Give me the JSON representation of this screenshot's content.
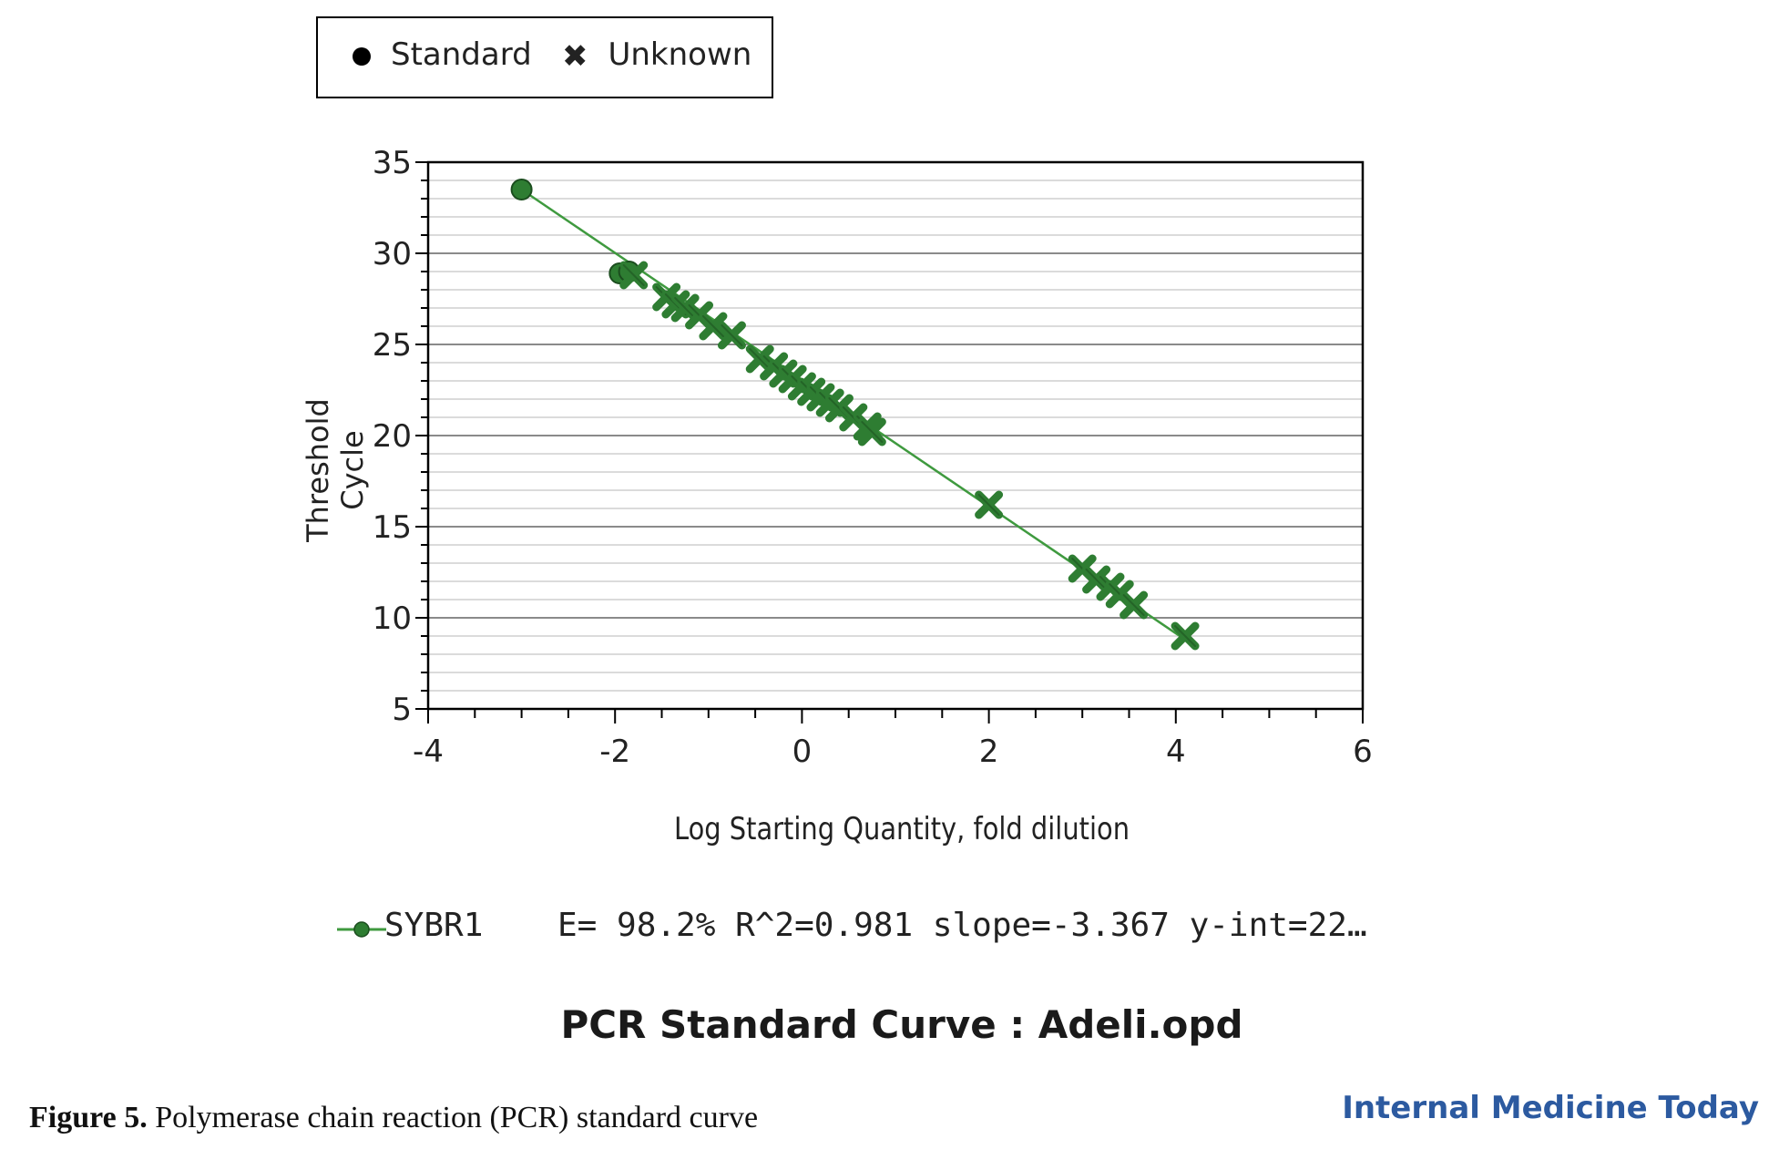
{
  "legend": {
    "standard_label": "Standard",
    "unknown_label": "Unknown",
    "standard_icon": "filled-circle",
    "unknown_icon": "x-mark"
  },
  "chart_data": {
    "type": "scatter",
    "xlabel": "Log Starting Quantity, fold dilution",
    "ylabel": "Threshold Cycle",
    "xlim": [
      -4,
      6
    ],
    "ylim": [
      5,
      35
    ],
    "x_ticks": [
      -4,
      -2,
      0,
      2,
      4,
      6
    ],
    "y_ticks": [
      5,
      10,
      15,
      20,
      25,
      30,
      35
    ],
    "grid": true,
    "legend_position": "top-left",
    "colors": {
      "marker": "#2e7d32",
      "marker_edge": "#1b4d1e",
      "line": "#3f9a3f",
      "grid_major": "#8a8a8a",
      "grid_minor": "#cfcfcf"
    },
    "series": [
      {
        "name": "Standard",
        "marker": "circle",
        "points": [
          [
            -3.0,
            33.5
          ],
          [
            -1.95,
            28.9
          ],
          [
            -1.85,
            29.0
          ]
        ]
      },
      {
        "name": "Unknown",
        "marker": "x",
        "points": [
          [
            -1.8,
            28.8
          ],
          [
            -1.45,
            27.6
          ],
          [
            -1.35,
            27.2
          ],
          [
            -1.25,
            27.0
          ],
          [
            -1.1,
            26.6
          ],
          [
            -0.95,
            26.0
          ],
          [
            -0.75,
            25.5
          ],
          [
            -0.45,
            24.2
          ],
          [
            -0.3,
            23.8
          ],
          [
            -0.2,
            23.4
          ],
          [
            -0.1,
            23.1
          ],
          [
            0.0,
            22.7
          ],
          [
            0.1,
            22.4
          ],
          [
            0.2,
            22.1
          ],
          [
            0.3,
            21.8
          ],
          [
            0.4,
            21.5
          ],
          [
            0.55,
            21.0
          ],
          [
            0.7,
            20.5
          ],
          [
            0.75,
            20.2
          ],
          [
            2.0,
            16.2
          ],
          [
            3.0,
            12.7
          ],
          [
            3.15,
            12.1
          ],
          [
            3.3,
            11.7
          ],
          [
            3.4,
            11.3
          ],
          [
            3.55,
            10.7
          ],
          [
            4.1,
            9.0
          ]
        ]
      }
    ],
    "fit_line": {
      "x": [
        -3.0,
        4.1
      ],
      "y": [
        33.5,
        8.8
      ]
    }
  },
  "series_info": {
    "name": "SYBR1",
    "stats": "E= 98.2% R^2=0.981 slope=-3.367 y-int=22…"
  },
  "chart_title": "PCR Standard Curve  : Adeli.opd",
  "caption": {
    "lead": "Figure 5.",
    "text": " Polymerase chain reaction (PCR) standard curve"
  },
  "brand": "Internal Medicine Today"
}
